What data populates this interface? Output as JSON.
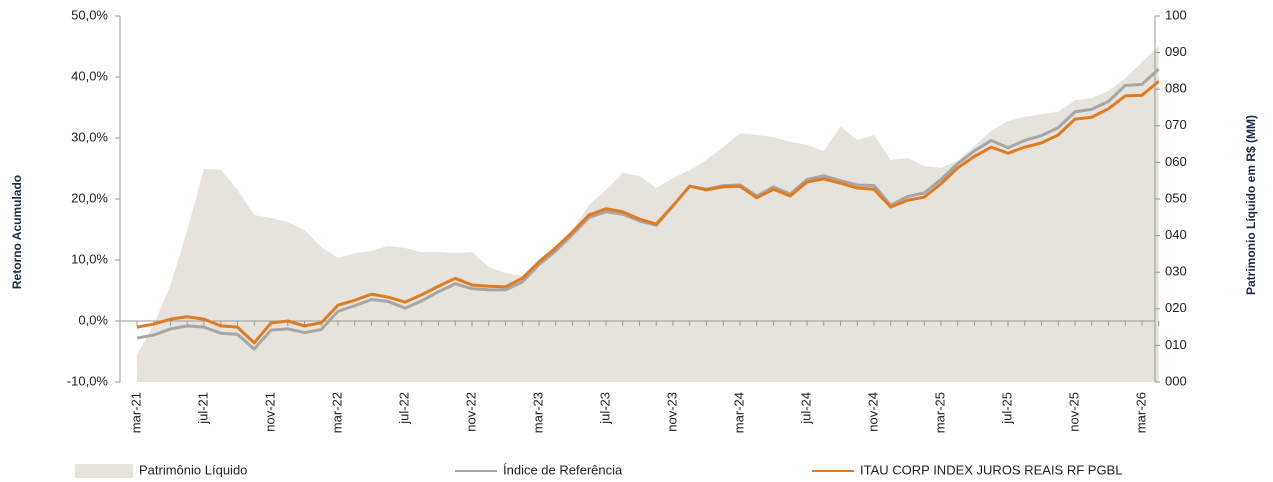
{
  "chart_data": {
    "type": "line",
    "y_label": "Retorno Acumulado",
    "y2_label": "Patrimonio Líquido em R$ (MM)",
    "categories": [
      "mar-21",
      null,
      null,
      null,
      "jul-21",
      null,
      null,
      null,
      "nov-21",
      null,
      null,
      null,
      "mar-22",
      null,
      null,
      null,
      "jul-22",
      null,
      null,
      null,
      "nov-22",
      null,
      null,
      null,
      "mar-23",
      null,
      null,
      null,
      "jul-23",
      null,
      null,
      null,
      "nov-23",
      null,
      null,
      null,
      "mar-24",
      null,
      null,
      null,
      "jul-24",
      null,
      null,
      null,
      "nov-24",
      null,
      null,
      null,
      "mar-25",
      null,
      null,
      null,
      "jul-25",
      null,
      null,
      null,
      "nov-25",
      null,
      null,
      null,
      "mar-26",
      null
    ],
    "ylim": [
      -10,
      50
    ],
    "yticks": [
      {
        "value": -10,
        "label": "-10,0%"
      },
      {
        "value": 0,
        "label": "0,0%"
      },
      {
        "value": 10,
        "label": "10,0%"
      },
      {
        "value": 20,
        "label": "20,0%"
      },
      {
        "value": 30,
        "label": "30,0%"
      },
      {
        "value": 40,
        "label": "40,0%"
      },
      {
        "value": 50,
        "label": "50,0%"
      }
    ],
    "y2lim": [
      0,
      100
    ],
    "y2ticks": [
      {
        "value": 0,
        "label": "000"
      },
      {
        "value": 10,
        "label": "010"
      },
      {
        "value": 20,
        "label": "020"
      },
      {
        "value": 30,
        "label": "030"
      },
      {
        "value": 40,
        "label": "040"
      },
      {
        "value": 50,
        "label": "050"
      },
      {
        "value": 60,
        "label": "060"
      },
      {
        "value": 70,
        "label": "070"
      },
      {
        "value": 80,
        "label": "080"
      },
      {
        "value": 90,
        "label": "090"
      },
      100
    ],
    "series": [
      {
        "name": "Patrimônio Líquido",
        "type": "area",
        "axis": "y2",
        "color": "#e6e2dc",
        "values": [
          7.4,
          15.6,
          26.5,
          41.5,
          58.2,
          58,
          52.5,
          45.6,
          44.8,
          43.7,
          41.5,
          36.9,
          33.9,
          35.2,
          35.8,
          37.2,
          36.6,
          35.5,
          35.5,
          35.2,
          35.5,
          31.4,
          29.8,
          29.0,
          31.1,
          36,
          41.5,
          48.4,
          52.5,
          57.1,
          56.3,
          53,
          55.7,
          57.9,
          60.7,
          64.2,
          68,
          67.5,
          66.9,
          65.6,
          64.8,
          63.1,
          69.9,
          66.1,
          67.5,
          60.7,
          61.2,
          59,
          58.5,
          60.4,
          64.5,
          68.6,
          71.3,
          72.4,
          73.2,
          73.8,
          77.0,
          77.6,
          79.5,
          83,
          87.4,
          91.8
        ]
      },
      {
        "name": "Índice de Referência",
        "type": "line",
        "color": "#a6a6a6",
        "values": [
          -2.8,
          -2.3,
          -1.3,
          -0.8,
          -1.0,
          -2.0,
          -2.2,
          -4.6,
          -1.5,
          -1.3,
          -1.9,
          -1.4,
          1.6,
          2.5,
          3.5,
          3.2,
          2.1,
          3.3,
          4.8,
          6.1,
          5.3,
          5.1,
          5.1,
          6.4,
          9.2,
          11.5,
          14.2,
          17.0,
          17.9,
          17.5,
          16.4,
          15.7,
          18.9,
          22.1,
          21.6,
          22.2,
          22.3,
          20.5,
          22.0,
          20.8,
          23.2,
          23.8,
          23.0,
          22.3,
          22.2,
          19.0,
          20.4,
          21.0,
          23.2,
          25.8,
          27.9,
          29.6,
          28.4,
          29.6,
          30.4,
          31.7,
          34.3,
          34.7,
          36.0,
          38.6,
          38.8,
          41.3
        ]
      },
      {
        "name": "ITAU CORP INDEX JUROS REAIS RF PGBL",
        "type": "line",
        "color": "#e07b1f",
        "values": [
          -1.0,
          -0.5,
          0.3,
          0.7,
          0.3,
          -0.8,
          -1.0,
          -3.6,
          -0.3,
          0.0,
          -0.8,
          -0.3,
          2.6,
          3.4,
          4.4,
          3.9,
          3.1,
          4.3,
          5.7,
          7.0,
          5.9,
          5.7,
          5.6,
          7.0,
          9.7,
          12.0,
          14.6,
          17.4,
          18.4,
          17.9,
          16.7,
          15.9,
          18.9,
          22.1,
          21.5,
          22.0,
          22.1,
          20.2,
          21.6,
          20.5,
          22.8,
          23.3,
          22.6,
          21.8,
          21.6,
          18.7,
          19.8,
          20.3,
          22.5,
          25.1,
          27.0,
          28.5,
          27.5,
          28.5,
          29.2,
          30.5,
          33.1,
          33.4,
          34.8,
          36.9,
          37.0,
          39.3
        ]
      }
    ]
  }
}
